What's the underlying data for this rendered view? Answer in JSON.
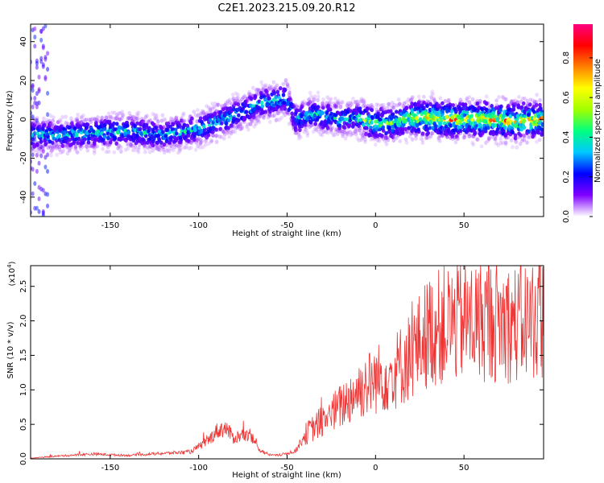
{
  "figure": {
    "title": "C2E1.2023.215.09.20.R12"
  },
  "colorbar": {
    "label": "Normalized spectral amplitude",
    "ticks": [
      "0.0",
      "0.2",
      "0.4",
      "0.6",
      "0.8"
    ],
    "tick_values": [
      0.0,
      0.2,
      0.4,
      0.6,
      0.8
    ],
    "range": [
      0,
      0.97
    ],
    "colors": [
      "#ffffff",
      "#8000ff",
      "#0000ff",
      "#00c8ff",
      "#00ff80",
      "#a0ff00",
      "#ffff00",
      "#ff8000",
      "#ff0000",
      "#ff0080"
    ]
  },
  "chart_data": [
    {
      "type": "heatmap",
      "xlabel": "Height of straight line (km)",
      "ylabel": "Frequency (Hz)",
      "xlim": [
        -195,
        95
      ],
      "ylim": [
        -50,
        49
      ],
      "xticks": [
        -150,
        -100,
        -50,
        0,
        50
      ],
      "yticks": [
        -40,
        -20,
        0,
        20,
        40
      ],
      "ridge": {
        "x": [
          -195,
          -180,
          -160,
          -140,
          -120,
          -100,
          -80,
          -65,
          -50,
          -45,
          -35,
          -20,
          -10,
          0,
          10,
          20,
          40,
          60,
          80,
          95
        ],
        "frequency": [
          -8,
          -8,
          -7,
          -6,
          -8,
          -5,
          2,
          8,
          11,
          0,
          3,
          0,
          1,
          -2,
          -2,
          1,
          0,
          0,
          -1,
          0
        ]
      }
    },
    {
      "type": "line",
      "xlabel": "Height of straight line (km)",
      "ylabel": "SNR (10 * v/v)",
      "y_scale_label": "(x10",
      "y_scale_exponent": "4",
      "y_scale_suffix": ")",
      "xlim": [
        -195,
        95
      ],
      "ylim": [
        0,
        2.8
      ],
      "xticks": [
        -150,
        -100,
        -50,
        0,
        50
      ],
      "yticks": [
        0.0,
        0.5,
        1.0,
        1.5,
        2.0,
        2.5
      ],
      "yticklabels": [
        "0.0",
        "0.5",
        "1.0",
        "1.5",
        "2.0",
        "2.5"
      ],
      "color": "#ee3333",
      "envelope": {
        "x": [
          -195,
          -180,
          -160,
          -140,
          -120,
          -105,
          -95,
          -90,
          -85,
          -80,
          -75,
          -70,
          -65,
          -60,
          -55,
          -50,
          -45,
          -40,
          -30,
          -20,
          -10,
          0,
          10,
          20,
          30,
          40,
          50,
          60,
          70,
          80,
          90,
          95
        ],
        "y": [
          0.01,
          0.04,
          0.07,
          0.05,
          0.08,
          0.1,
          0.25,
          0.4,
          0.45,
          0.3,
          0.35,
          0.3,
          0.12,
          0.06,
          0.05,
          0.08,
          0.12,
          0.35,
          0.55,
          0.75,
          1.0,
          1.15,
          1.25,
          1.5,
          1.85,
          1.95,
          2.0,
          2.0,
          2.0,
          1.95,
          2.05,
          2.05
        ]
      }
    }
  ]
}
